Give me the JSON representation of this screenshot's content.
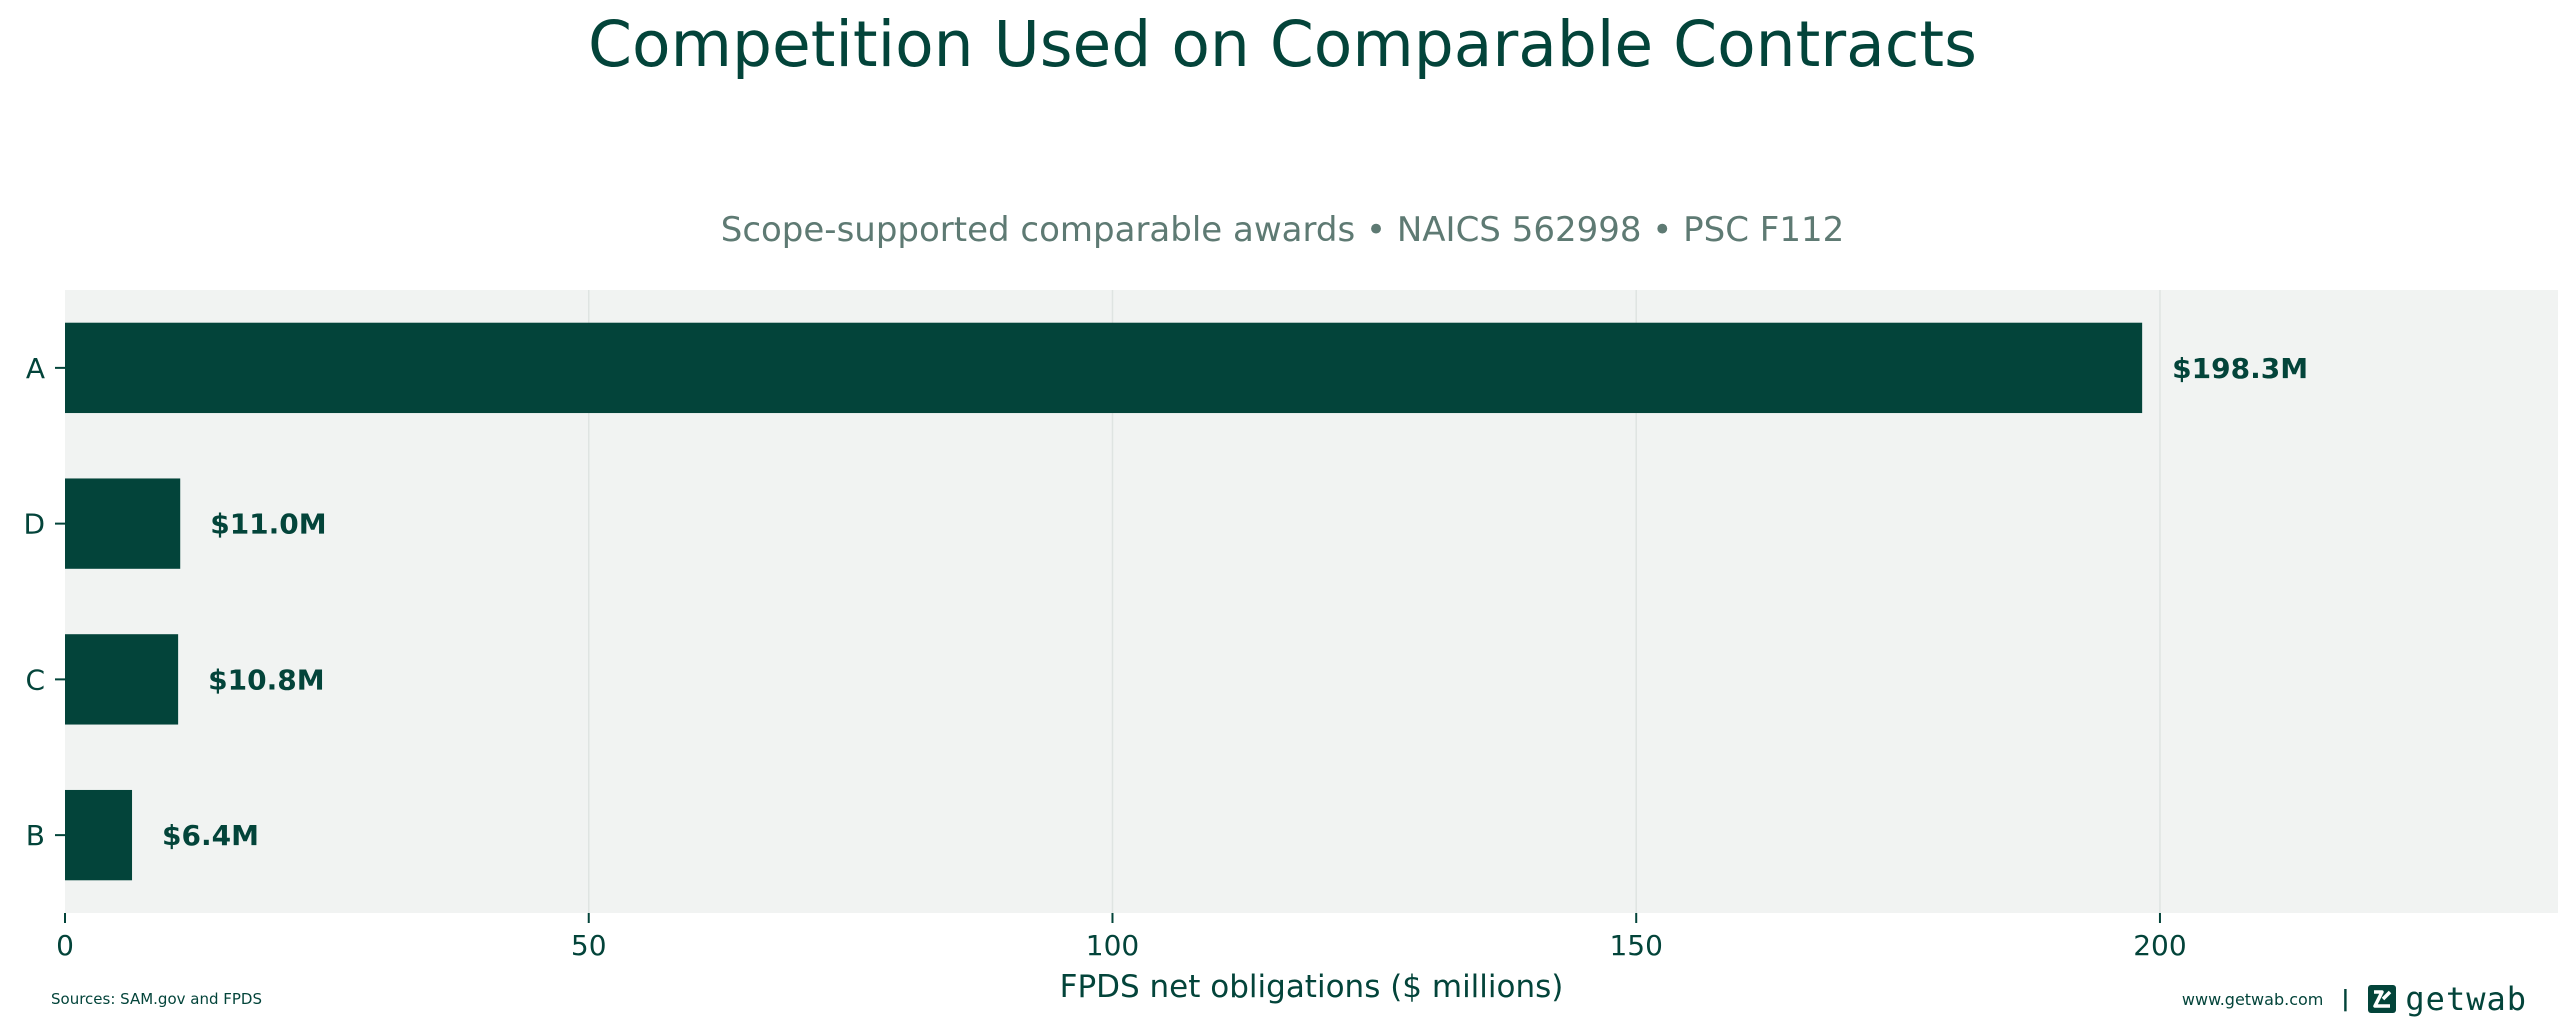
{
  "title": "Competition Used on Comparable Contracts",
  "subtitle": "Scope-supported comparable awards • NAICS 562998 • PSC F112",
  "footer": {
    "source": "Sources: SAM.gov and FPDS",
    "url": "www.getwab.com",
    "separator": "|",
    "brand_name": "getwab",
    "brand_icon": "getwab-logo-icon"
  },
  "colors": {
    "bar": "#03443a",
    "plot_background": "#f1f3f2",
    "grid": "#dfe4e2",
    "text_primary": "#03443a",
    "text_secondary": "#5e7a73"
  },
  "chart_data": {
    "type": "bar",
    "orientation": "horizontal",
    "categories": [
      "A",
      "D",
      "C",
      "B"
    ],
    "values": [
      198.3,
      11.0,
      10.8,
      6.4
    ],
    "data_labels": [
      "$198.3M",
      "$11.0M",
      "$10.8M",
      "$6.4M"
    ],
    "xlabel": "FPDS net obligations ($ millions)",
    "ylabel": "",
    "xlim": [
      0,
      238
    ],
    "xticks": [
      0,
      50,
      100,
      150,
      200
    ],
    "grid": "vertical"
  }
}
